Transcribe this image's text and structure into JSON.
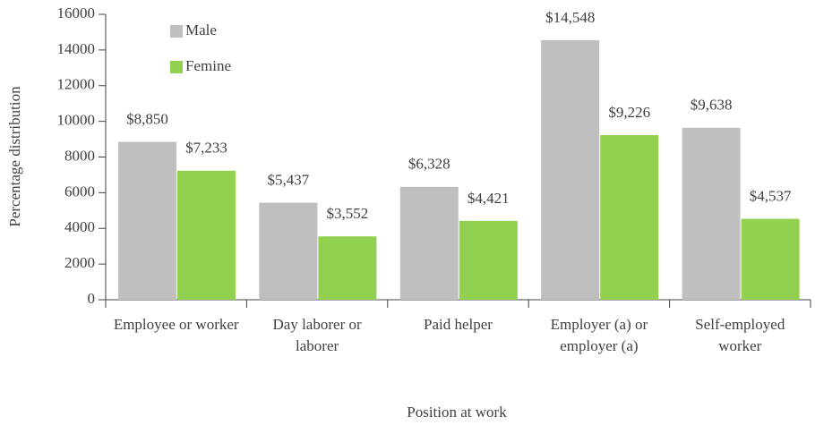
{
  "chart_data": {
    "type": "bar",
    "categories": [
      "Employee or worker",
      "Day laborer or laborer",
      "Paid helper",
      "Employer (a) or employer (a)",
      "Self-employed worker"
    ],
    "series": [
      {
        "name": "Male",
        "color": "#bfbfbf",
        "values": [
          8850,
          5437,
          6328,
          14548,
          9638
        ],
        "value_labels": [
          "$8,850",
          "$5,437",
          "$6,328",
          "$14,548",
          "$9,638"
        ]
      },
      {
        "name": "Femine",
        "color": "#92d050",
        "values": [
          7233,
          3552,
          4421,
          9226,
          4537
        ],
        "value_labels": [
          "$7,233",
          "$3,552",
          "$4,421",
          "$9,226",
          "$4,537"
        ]
      }
    ],
    "y_label": "Percentage distribution",
    "x_label": "Position at work",
    "ylim": [
      0,
      16000
    ],
    "yticks": [
      0,
      2000,
      4000,
      6000,
      8000,
      10000,
      12000,
      14000,
      16000
    ],
    "legend": "top-left"
  }
}
